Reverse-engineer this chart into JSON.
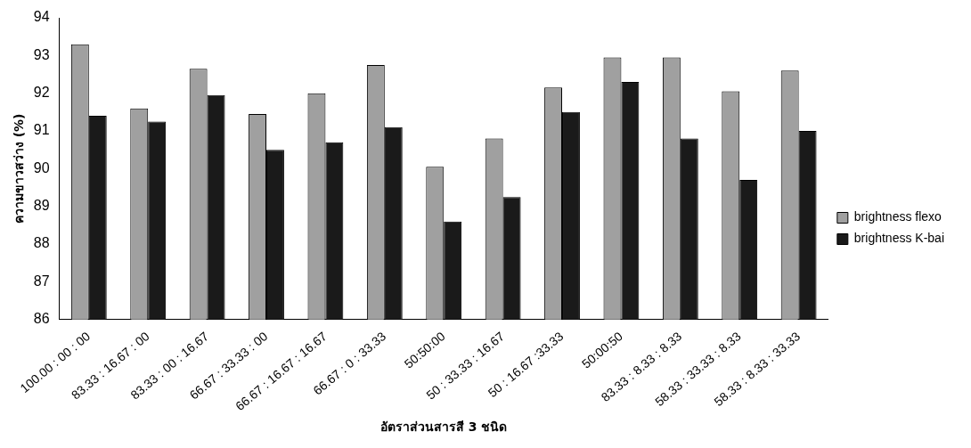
{
  "chart_data": {
    "type": "bar",
    "xlabel": "อัตราส่วนสารสี 3 ชนิด",
    "ylabel": "ความขาวสว่าง (%)",
    "categories": [
      "100.00 : 00 : 00",
      "83.33 : 16.67 : 00",
      "83.33 : 00 : 16.67",
      "66.67 : 33.33 : 00",
      "66.67 : 16.67 : 16.67",
      "66.67 : 0 : 33.33",
      "50:50:00",
      "50 : 33.33 : 16.67",
      "50 : 16.67 :33.33",
      "50:00:50",
      "83.33 : 8.33 : 8.33",
      "58.33 : 33.33 : 8.33",
      "58.33 : 8.33 : 33.33"
    ],
    "series": [
      {
        "name": "brightness flexo",
        "color": "#a0a0a0",
        "values": [
          93.3,
          91.6,
          92.65,
          91.45,
          92.0,
          92.75,
          90.05,
          90.8,
          92.15,
          92.95,
          92.95,
          92.05,
          92.6
        ]
      },
      {
        "name": "brightness K-bai",
        "color": "#1a1a1a",
        "values": [
          91.4,
          91.25,
          91.95,
          90.5,
          90.7,
          91.1,
          88.6,
          89.25,
          91.5,
          92.3,
          90.8,
          89.7,
          91.0
        ]
      }
    ],
    "ylim": [
      86,
      94
    ],
    "yticks": [
      86,
      87,
      88,
      89,
      90,
      91,
      92,
      93,
      94
    ],
    "grid": false,
    "legend": "right"
  }
}
